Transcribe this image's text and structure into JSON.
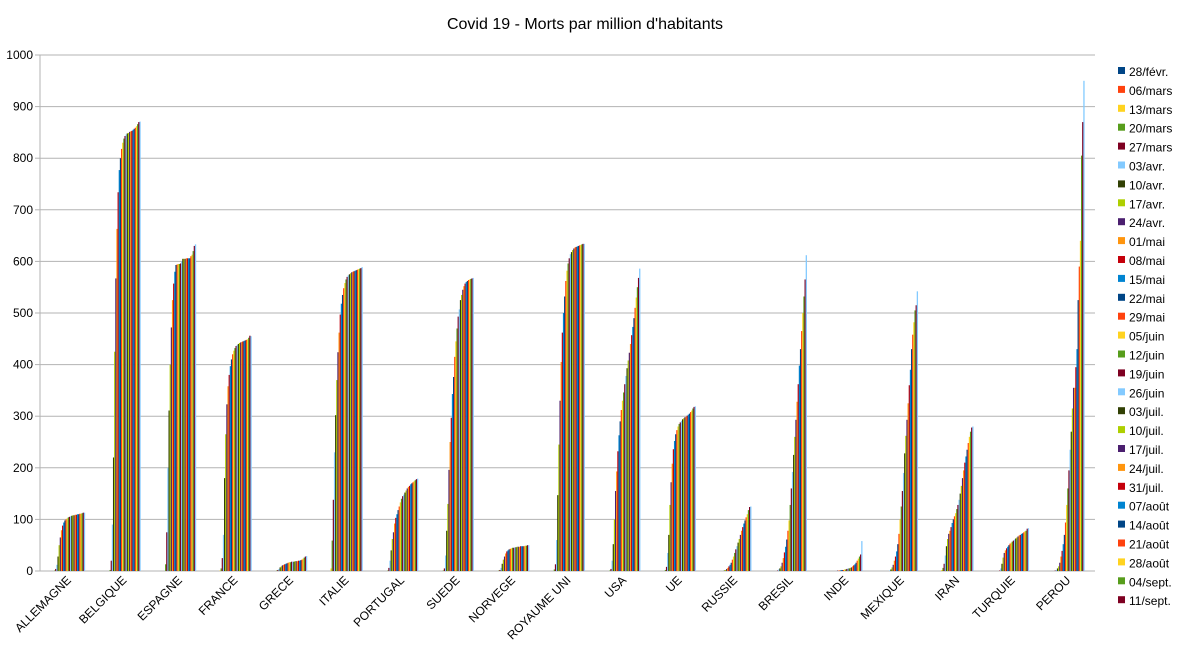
{
  "chart_data": {
    "type": "bar",
    "title": "Covid 19 - Morts par million d'habitants",
    "xlabel": "",
    "ylabel": "",
    "ylim": [
      0,
      1000
    ],
    "yticks": [
      0,
      100,
      200,
      300,
      400,
      500,
      600,
      700,
      800,
      900,
      1000
    ],
    "grid": true,
    "legend": "right",
    "categories": [
      "ALLEMAGNE",
      "BELGIQUE",
      "ESPAGNE",
      "FRANCE",
      "GRECE",
      "ITALIE",
      "PORTUGAL",
      "SUEDE",
      "NORVEGE",
      "ROYAUME UNI",
      "USA",
      "UE",
      "RUSSIE",
      "BRESIL",
      "INDE",
      "MEXIQUE",
      "IRAN",
      "TURQUIE",
      "PEROU"
    ],
    "series": [
      {
        "name": "28/févr.",
        "color": "#004586",
        "values": [
          0,
          0,
          0,
          0,
          0,
          0,
          0,
          0,
          0,
          0,
          0,
          0,
          0,
          0,
          0,
          0,
          0,
          0,
          0
        ]
      },
      {
        "name": "06/mars",
        "color": "#ff420e",
        "values": [
          0,
          0,
          0,
          0,
          0,
          0,
          0,
          0,
          0,
          0,
          0,
          0,
          0,
          0,
          0,
          0,
          0,
          0,
          0
        ]
      },
      {
        "name": "13/mars",
        "color": "#ffd320",
        "values": [
          0,
          0,
          0,
          1,
          0,
          5,
          0,
          0,
          0,
          0,
          0,
          0,
          0,
          0,
          0,
          0,
          2,
          0,
          0
        ]
      },
      {
        "name": "20/mars",
        "color": "#579d1c",
        "values": [
          1,
          2,
          13,
          5,
          1,
          59,
          1,
          1,
          1,
          3,
          1,
          2,
          0,
          0,
          0,
          0,
          6,
          0,
          0
        ]
      },
      {
        "name": "27/mars",
        "color": "#7e0021",
        "values": [
          4,
          20,
          75,
          25,
          2,
          138,
          6,
          5,
          2,
          13,
          4,
          8,
          0,
          1,
          0,
          0,
          14,
          1,
          1
        ]
      },
      {
        "name": "03/avr.",
        "color": "#83caff",
        "values": [
          12,
          90,
          200,
          70,
          4,
          230,
          20,
          30,
          6,
          60,
          20,
          35,
          0,
          3,
          0,
          1,
          30,
          5,
          2
        ]
      },
      {
        "name": "10/avr.",
        "color": "#314004",
        "values": [
          28,
          220,
          311,
          180,
          7,
          302,
          40,
          78,
          14,
          147,
          52,
          70,
          1,
          5,
          0,
          3,
          48,
          14,
          5
        ]
      },
      {
        "name": "17/avr.",
        "color": "#aecf00",
        "values": [
          50,
          425,
          400,
          265,
          9,
          370,
          62,
          130,
          22,
          245,
          100,
          128,
          2,
          9,
          0,
          7,
          62,
          26,
          9
        ]
      },
      {
        "name": "24/avr.",
        "color": "#4b1f6f",
        "values": [
          65,
          567,
          472,
          323,
          11,
          424,
          75,
          196,
          28,
          330,
          155,
          172,
          4,
          16,
          1,
          12,
          72,
          35,
          16
        ]
      },
      {
        "name": "01/mai",
        "color": "#ff950e",
        "values": [
          79,
          663,
          525,
          358,
          12,
          462,
          92,
          250,
          34,
          405,
          193,
          208,
          6,
          25,
          1,
          20,
          78,
          40,
          28
        ]
      },
      {
        "name": "08/mai",
        "color": "#c5000b",
        "values": [
          88,
          734,
          557,
          380,
          13,
          497,
          103,
          297,
          38,
          462,
          232,
          236,
          9,
          36,
          1,
          28,
          85,
          44,
          39
        ]
      },
      {
        "name": "15/mai",
        "color": "#0084d1",
        "values": [
          94,
          777,
          580,
          397,
          14,
          518,
          110,
          343,
          40,
          500,
          263,
          252,
          12,
          47,
          2,
          38,
          93,
          47,
          52
        ]
      },
      {
        "name": "22/mai",
        "color": "#004586",
        "values": [
          98,
          800,
          593,
          410,
          15,
          535,
          118,
          376,
          42,
          532,
          290,
          265,
          16,
          61,
          2,
          52,
          100,
          50,
          70
        ]
      },
      {
        "name": "29/mai",
        "color": "#ff420e",
        "values": [
          100,
          818,
          594,
          420,
          16,
          548,
          125,
          415,
          43,
          562,
          312,
          273,
          22,
          78,
          2,
          72,
          106,
          53,
          94
        ]
      },
      {
        "name": "05/juin",
        "color": "#ffd320",
        "values": [
          102,
          830,
          595,
          427,
          17,
          558,
          133,
          445,
          44,
          582,
          330,
          280,
          28,
          98,
          3,
          100,
          112,
          55,
          128
        ]
      },
      {
        "name": "12/juin",
        "color": "#579d1c",
        "values": [
          104,
          838,
          595,
          432,
          17,
          565,
          140,
          470,
          45,
          596,
          346,
          285,
          35,
          128,
          3,
          125,
          120,
          57,
          160
        ]
      },
      {
        "name": "19/juin",
        "color": "#7e0021",
        "values": [
          105,
          843,
          596,
          436,
          18,
          570,
          145,
          493,
          45,
          606,
          362,
          288,
          42,
          160,
          4,
          155,
          128,
          59,
          195
        ]
      },
      {
        "name": "26/juin",
        "color": "#83caff",
        "values": [
          106,
          846,
          600,
          438,
          18,
          573,
          148,
          507,
          46,
          614,
          378,
          291,
          48,
          192,
          5,
          190,
          138,
          61,
          235
        ]
      },
      {
        "name": "03/juil.",
        "color": "#314004",
        "values": [
          107,
          848,
          605,
          440,
          18,
          575,
          152,
          525,
          46,
          618,
          393,
          294,
          55,
          225,
          5,
          228,
          150,
          63,
          270
        ]
      },
      {
        "name": "10/juil.",
        "color": "#aecf00",
        "values": [
          108,
          849,
          605,
          442,
          19,
          577,
          156,
          535,
          47,
          622,
          408,
          296,
          62,
          260,
          6,
          262,
          165,
          65,
          315
        ]
      },
      {
        "name": "17/juil.",
        "color": "#4b1f6f",
        "values": [
          108,
          851,
          605,
          443,
          19,
          579,
          160,
          545,
          47,
          625,
          423,
          298,
          70,
          293,
          7,
          293,
          180,
          67,
          355
        ]
      },
      {
        "name": "24/juil.",
        "color": "#ff950e",
        "values": [
          109,
          852,
          606,
          444,
          19,
          580,
          163,
          552,
          47,
          627,
          440,
          299,
          78,
          328,
          9,
          325,
          195,
          69,
          355
        ]
      },
      {
        "name": "31/juil.",
        "color": "#c5000b",
        "values": [
          109,
          853,
          606,
          445,
          20,
          581,
          165,
          557,
          48,
          628,
          457,
          301,
          85,
          362,
          11,
          360,
          210,
          70,
          395
        ]
      },
      {
        "name": "07/août",
        "color": "#0084d1",
        "values": [
          110,
          855,
          606,
          446,
          20,
          582,
          168,
          560,
          48,
          629,
          473,
          303,
          92,
          398,
          13,
          390,
          222,
          72,
          430
        ]
      },
      {
        "name": "14/août",
        "color": "#004586",
        "values": [
          110,
          857,
          606,
          447,
          21,
          583,
          170,
          562,
          48,
          630,
          490,
          305,
          98,
          430,
          16,
          430,
          235,
          73,
          525
        ]
      },
      {
        "name": "21/août",
        "color": "#ff420e",
        "values": [
          111,
          859,
          610,
          448,
          22,
          584,
          172,
          564,
          48,
          631,
          510,
          308,
          104,
          465,
          20,
          458,
          248,
          75,
          590
        ]
      },
      {
        "name": "28/août",
        "color": "#ffd320",
        "values": [
          111,
          862,
          613,
          449,
          24,
          585,
          174,
          565,
          49,
          632,
          530,
          311,
          110,
          500,
          24,
          482,
          260,
          77,
          640
        ]
      },
      {
        "name": "04/sept.",
        "color": "#579d1c",
        "values": [
          112,
          866,
          620,
          452,
          26,
          586,
          176,
          566,
          49,
          633,
          550,
          315,
          118,
          532,
          28,
          505,
          270,
          78,
          805
        ]
      },
      {
        "name": "11/sept.",
        "color": "#7e0021",
        "values": [
          113,
          870,
          630,
          456,
          28,
          587,
          178,
          567,
          50,
          634,
          568,
          318,
          124,
          565,
          32,
          515,
          278,
          82,
          870
        ]
      },
      {
        "name": "",
        "color": "#83caff",
        "values": [
          113,
          871,
          633,
          455,
          29,
          589,
          179,
          568,
          50,
          634,
          586,
          319,
          125,
          612,
          58,
          542,
          280,
          83,
          950
        ]
      }
    ]
  }
}
